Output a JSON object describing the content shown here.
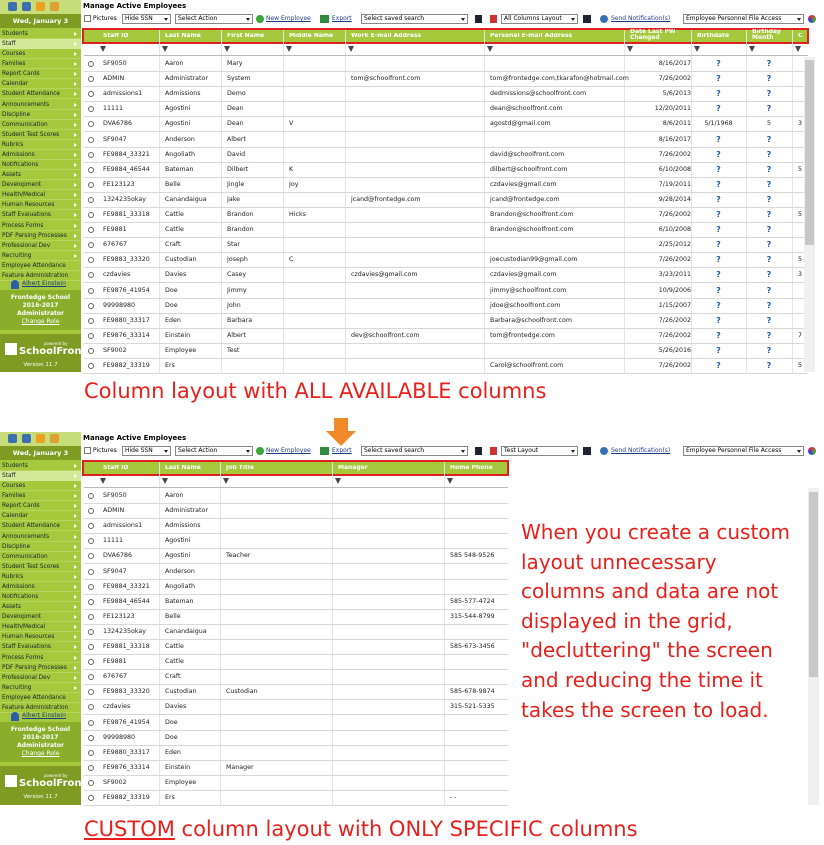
{
  "sidebar": {
    "date": "Wed, January 3",
    "menu": [
      "Students",
      "Staff",
      "Courses",
      "Families",
      "Report Cards",
      "Calendar",
      "Student Attendance",
      "Announcements",
      "Discipline",
      "Communication",
      "Student Test Scores",
      "Rubrics",
      "Admissions",
      "Notifications",
      "Assets",
      "Development",
      "Health/Medical",
      "Human Resources",
      "Staff Evaluations",
      "Process Forms",
      "PDF Parsing Processes",
      "Professional Dev",
      "Recruiting",
      "Employee Attendance",
      "Feature Administration"
    ],
    "user": "Albert Einstein",
    "school": "Frontedge School",
    "year": "2016-2017",
    "role": "Administrator",
    "change_role": "Change Role",
    "powered_by": "powered by",
    "brand": "SchoolFront",
    "version": "Version 11.7"
  },
  "toolbar": {
    "title": "Manage Active Employees",
    "pictures": "Pictures",
    "hide_ssn": "Hide SSN",
    "select_action": "Select Action",
    "new_employee": "New Employee",
    "export": "Export",
    "saved_search": "Select saved search",
    "notification": "Send Notification(s)",
    "file_access": "Employee Personnel File Access"
  },
  "screens": [
    {
      "layout": "All Columns Layout",
      "columns": [
        "Staff ID",
        "Last Name",
        "First Name",
        "Middle Name",
        "Work E-mail Address",
        "Personal E-mail Address",
        "Date Last PW Changed",
        "Birthdate",
        "Birthday Month",
        "C"
      ],
      "rows": [
        [
          "SF9050",
          "Aaron",
          "Mary",
          null,
          null,
          null,
          "8/16/2017",
          "?",
          "?",
          null
        ],
        [
          "ADMIN",
          "Administrator",
          "System",
          null,
          "tom@schoolfront.com",
          "tom@frontedge.com,tkarafon@hotmail.com",
          "7/26/2002",
          "?",
          "?",
          null
        ],
        [
          "admissions1",
          "Admissions",
          "Demo",
          null,
          null,
          "dedmissions@schoolfront.com",
          "5/6/2013",
          "?",
          "?",
          null
        ],
        [
          "11111",
          "Agostini",
          "Dean",
          null,
          null,
          "dean@schoolfront.com",
          "12/20/2011",
          "?",
          "?",
          null
        ],
        [
          "DVA6786",
          "Agostini",
          "Dean",
          "V",
          null,
          "agostd@gmail.com",
          "8/6/2011",
          "5/1/1968",
          "5",
          "3"
        ],
        [
          "SF9047",
          "Anderson",
          "Albert",
          null,
          null,
          null,
          "8/16/2017",
          "?",
          "?",
          null
        ],
        [
          "FE9884_33321",
          "Angoliath",
          "David",
          null,
          null,
          "david@schoolfront.com",
          "7/26/2002",
          "?",
          "?",
          null
        ],
        [
          "FE9884_46544",
          "Bateman",
          "Dilbert",
          "K",
          null,
          "dilbert@schoolfront.com",
          "6/10/2008",
          "?",
          "?",
          "5"
        ],
        [
          "FE123123",
          "Belle",
          "Jingle",
          "Joy",
          null,
          "czdavies@gmail.com",
          "7/19/2011",
          "?",
          "?",
          null
        ],
        [
          "1324235okay",
          "Canandaigua",
          "Jake",
          null,
          "jcand@frontedge.com",
          "jcand@frontedge.com",
          "9/28/2014",
          "?",
          "?",
          null
        ],
        [
          "FE9881_33318",
          "Cattle",
          "Brandon",
          "Hicks",
          null,
          "Brandon@schoolfront.com",
          "7/26/2002",
          "?",
          "?",
          "5"
        ],
        [
          "FE9881",
          "Cattle",
          "Brandon",
          null,
          null,
          "Brandon@schoolfront.com",
          "6/10/2008",
          "?",
          "?",
          null
        ],
        [
          "676767",
          "Craft",
          "Star",
          null,
          null,
          null,
          "2/25/2012",
          "?",
          "?",
          null
        ],
        [
          "FE9883_33320",
          "Custodian",
          "Joseph",
          "C",
          null,
          "joecustodian99@gmail.com",
          "7/26/2002",
          "?",
          "?",
          "5"
        ],
        [
          "czdavies",
          "Davies",
          "Casey",
          null,
          "czdavies@gmail.com",
          "czdavies@gmail.com",
          "3/23/2011",
          "?",
          "?",
          "3"
        ],
        [
          "FE9876_41954",
          "Doe",
          "Jimmy",
          null,
          null,
          "jimmy@schoolfront.com",
          "10/9/2006",
          "?",
          "?",
          null
        ],
        [
          "99998980",
          "Doe",
          "John",
          null,
          null,
          "jdoe@schoolfront.com",
          "1/15/2007",
          "?",
          "?",
          null
        ],
        [
          "FE9880_33317",
          "Eden",
          "Barbara",
          null,
          null,
          "Barbara@schoolfront.com",
          "7/26/2002",
          "?",
          "?",
          null
        ],
        [
          "FE9876_33314",
          "Einstein",
          "Albert",
          null,
          "dev@schoolfront.com",
          "tom@frontedge.com",
          "7/26/2002",
          "?",
          "?",
          "7"
        ],
        [
          "SF9002",
          "Employee",
          "Test",
          null,
          null,
          null,
          "5/26/2016",
          "?",
          "?",
          null
        ],
        [
          "FE9882_33319",
          "Ers",
          null,
          null,
          null,
          "Carol@schoolfront.com",
          "7/26/2002",
          "?",
          "?",
          "5"
        ]
      ]
    },
    {
      "layout": "Test Layout",
      "columns": [
        "Staff ID",
        "Last Name",
        "Job Title",
        "Manager",
        "Home Phone"
      ],
      "rows": [
        [
          "SF9050",
          "Aaron",
          null,
          null,
          null
        ],
        [
          "ADMIN",
          "Administrator",
          null,
          null,
          null
        ],
        [
          "admissions1",
          "Admissions",
          null,
          null,
          null
        ],
        [
          "11111",
          "Agostini",
          null,
          null,
          null
        ],
        [
          "DVA6786",
          "Agostini",
          "Teacher",
          null,
          "585 548-9526"
        ],
        [
          "SF9047",
          "Anderson",
          null,
          null,
          null
        ],
        [
          "FE9884_33321",
          "Angoliath",
          null,
          null,
          null
        ],
        [
          "FE9884_46544",
          "Bateman",
          null,
          null,
          "585-577-4724"
        ],
        [
          "FE123123",
          "Belle",
          null,
          null,
          "315-544-8799"
        ],
        [
          "1324235okay",
          "Canandaigua",
          null,
          null,
          null
        ],
        [
          "FE9881_33318",
          "Cattle",
          null,
          null,
          "585-673-3456"
        ],
        [
          "FE9881",
          "Cattle",
          null,
          null,
          null
        ],
        [
          "676767",
          "Craft",
          null,
          null,
          null
        ],
        [
          "FE9883_33320",
          "Custodian",
          "Custodian",
          null,
          "585-678-9874"
        ],
        [
          "czdavies",
          "Davies",
          null,
          null,
          "315-521-5335"
        ],
        [
          "FE9876_41954",
          "Doe",
          null,
          null,
          null
        ],
        [
          "99998980",
          "Doe",
          null,
          null,
          null
        ],
        [
          "FE9880_33317",
          "Eden",
          null,
          null,
          null
        ],
        [
          "FE9876_33314",
          "Einstein",
          "Manager",
          null,
          null
        ],
        [
          "SF9002",
          "Employee",
          null,
          null,
          null
        ],
        [
          "FE9882_33319",
          "Ers",
          null,
          null,
          "- -"
        ]
      ]
    }
  ],
  "captions": {
    "top": "Column layout with ALL AVAILABLE columns",
    "note": [
      "When you create a custom",
      "layout unnecessary",
      "columns and data are not",
      "displayed in the grid,",
      "\"decluttering\" the screen",
      "and reducing the time it",
      "takes the screen to load."
    ],
    "bottom": {
      "underlined": "CUSTOM",
      "rest": " column layout with ONLY SPECIFIC columns"
    }
  }
}
